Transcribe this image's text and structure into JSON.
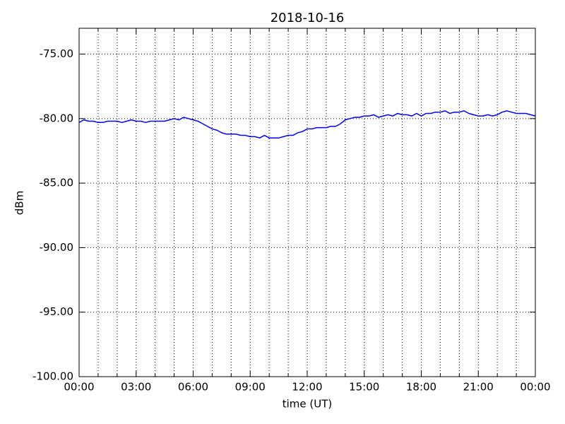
{
  "chart_data": {
    "type": "line",
    "title": "2018-10-16",
    "xlabel": "time (UT)",
    "ylabel": "dBm",
    "x": [
      0,
      0.25,
      0.5,
      0.75,
      1,
      1.25,
      1.5,
      1.75,
      2,
      2.25,
      2.5,
      2.75,
      3,
      3.25,
      3.5,
      3.75,
      4,
      4.25,
      4.5,
      4.75,
      5,
      5.25,
      5.5,
      5.75,
      6,
      6.25,
      6.5,
      6.75,
      7,
      7.25,
      7.5,
      7.75,
      8,
      8.25,
      8.5,
      8.75,
      9,
      9.25,
      9.5,
      9.75,
      10,
      10.25,
      10.5,
      10.75,
      11,
      11.25,
      11.5,
      11.75,
      12,
      12.25,
      12.5,
      12.75,
      13,
      13.25,
      13.5,
      13.75,
      14,
      14.25,
      14.5,
      14.75,
      15,
      15.25,
      15.5,
      15.75,
      16,
      16.25,
      16.5,
      16.75,
      17,
      17.25,
      17.5,
      17.75,
      18,
      18.25,
      18.5,
      18.75,
      19,
      19.25,
      19.5,
      19.75,
      20,
      20.25,
      20.5,
      20.75,
      21,
      21.25,
      21.5,
      21.75,
      22,
      22.25,
      22.5,
      22.75,
      23,
      23.25,
      23.5,
      23.75,
      24
    ],
    "values": [
      -80.3,
      -80.1,
      -80.2,
      -80.2,
      -80.3,
      -80.3,
      -80.2,
      -80.2,
      -80.2,
      -80.3,
      -80.2,
      -80.1,
      -80.2,
      -80.2,
      -80.3,
      -80.2,
      -80.2,
      -80.2,
      -80.2,
      -80.1,
      -80.0,
      -80.1,
      -79.9,
      -80.0,
      -80.1,
      -80.2,
      -80.4,
      -80.6,
      -80.8,
      -80.9,
      -81.1,
      -81.2,
      -81.2,
      -81.2,
      -81.3,
      -81.3,
      -81.4,
      -81.4,
      -81.5,
      -81.3,
      -81.5,
      -81.5,
      -81.5,
      -81.4,
      -81.3,
      -81.3,
      -81.1,
      -81.0,
      -80.8,
      -80.8,
      -80.7,
      -80.7,
      -80.7,
      -80.6,
      -80.6,
      -80.4,
      -80.1,
      -80.0,
      -79.9,
      -79.9,
      -79.8,
      -79.8,
      -79.7,
      -79.9,
      -79.8,
      -79.7,
      -79.8,
      -79.6,
      -79.7,
      -79.7,
      -79.8,
      -79.6,
      -79.8,
      -79.6,
      -79.6,
      -79.5,
      -79.5,
      -79.4,
      -79.6,
      -79.5,
      -79.5,
      -79.4,
      -79.6,
      -79.7,
      -79.8,
      -79.8,
      -79.7,
      -79.8,
      -79.7,
      -79.5,
      -79.4,
      -79.5,
      -79.6,
      -79.6,
      -79.6,
      -79.7,
      -79.8
    ],
    "color": "#0000ff",
    "xlim": [
      0,
      24
    ],
    "xticks": [
      {
        "value": 0,
        "label": "00:00"
      },
      {
        "value": 3,
        "label": "03:00"
      },
      {
        "value": 6,
        "label": "06:00"
      },
      {
        "value": 9,
        "label": "09:00"
      },
      {
        "value": 12,
        "label": "12:00"
      },
      {
        "value": 15,
        "label": "15:00"
      },
      {
        "value": 18,
        "label": "18:00"
      },
      {
        "value": 21,
        "label": "21:00"
      },
      {
        "value": 24,
        "label": "00:00"
      }
    ],
    "xminorticks": [
      1,
      2,
      4,
      5,
      7,
      8,
      10,
      11,
      13,
      14,
      16,
      17,
      19,
      20,
      22,
      23
    ],
    "ylim": [
      -100,
      -73
    ],
    "yticks": [
      {
        "value": -100,
        "label": "-100.00"
      },
      {
        "value": -95,
        "label": "-95.00"
      },
      {
        "value": -90,
        "label": "-90.00"
      },
      {
        "value": -85,
        "label": "-85.00"
      },
      {
        "value": -80,
        "label": "-80.00"
      },
      {
        "value": -75,
        "label": "-75.00"
      }
    ],
    "grid": true
  }
}
